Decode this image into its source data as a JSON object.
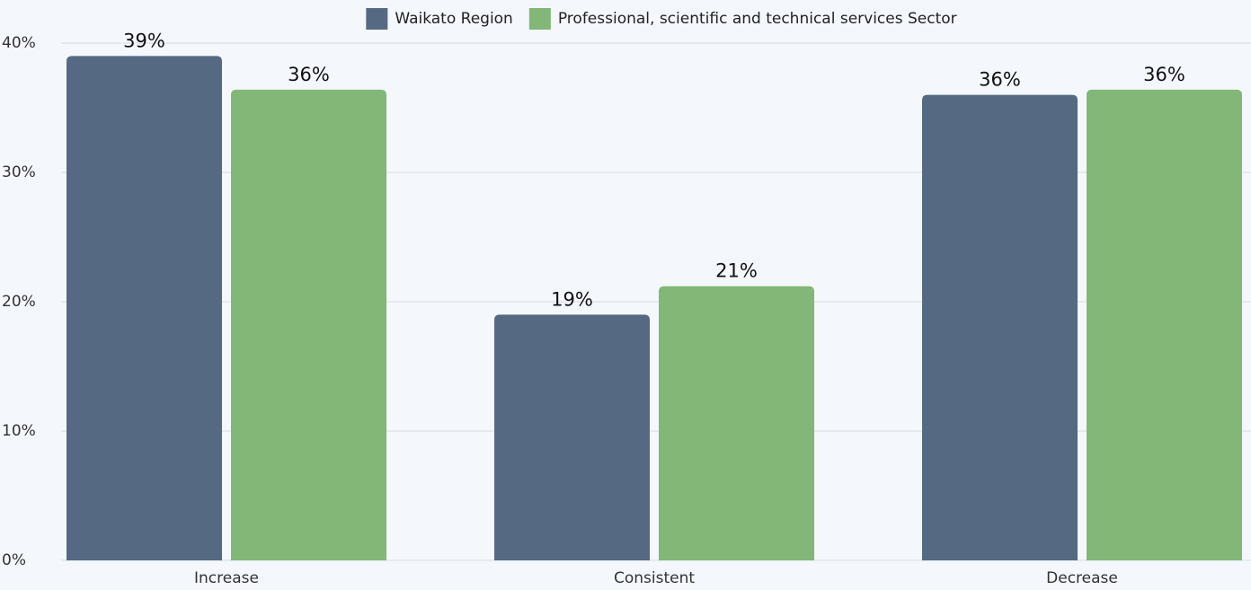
{
  "chart_data": {
    "type": "bar",
    "categories": [
      "Increase",
      "Consistent",
      "Decrease"
    ],
    "series": [
      {
        "name": "Waikato Region",
        "color": "#556a82",
        "values": [
          39,
          19,
          36
        ],
        "value_labels": [
          "39%",
          "19%",
          "36%"
        ]
      },
      {
        "name": "Professional, scientific and technical services Sector",
        "color": "#82b777",
        "values": [
          36.4,
          21.2,
          36.4
        ],
        "value_labels": [
          "36%",
          "21%",
          "36%"
        ]
      }
    ],
    "ylim": [
      0,
      40
    ],
    "yticks": [
      {
        "value": 0,
        "label": "0%"
      },
      {
        "value": 10,
        "label": "10%"
      },
      {
        "value": 20,
        "label": "20%"
      },
      {
        "value": 30,
        "label": "30%"
      },
      {
        "value": 40,
        "label": "40%"
      }
    ],
    "grid": true,
    "legend": "top"
  }
}
